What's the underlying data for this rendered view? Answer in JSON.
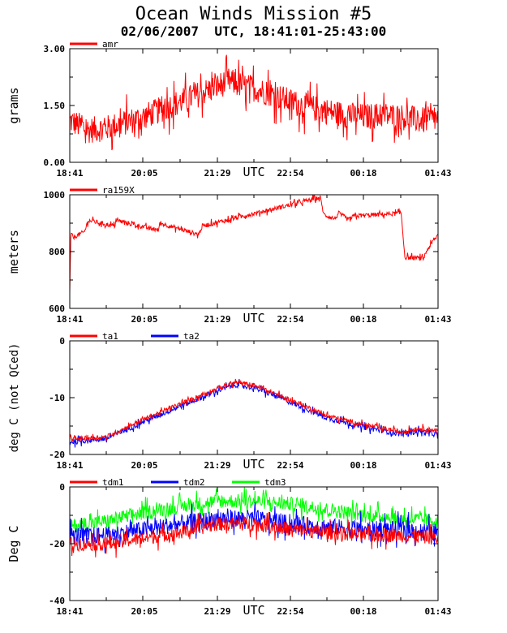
{
  "header": {
    "title": "Ocean Winds Mission #5",
    "subtitle": "02/06/2007  UTC, 18:41:01-25:43:00"
  },
  "chart_data": [
    {
      "type": "line",
      "ylabel": "grams",
      "xlabel": "UTC",
      "ylim": [
        0,
        3
      ],
      "yticks": [
        "0.00",
        "1.50",
        "3.00"
      ],
      "yticks_values": [
        0,
        1.5,
        3
      ],
      "xticks": [
        "18:41",
        "20:05",
        "21:29",
        "22:54",
        "00:18",
        "01:43"
      ],
      "legend": [
        {
          "name": "amr",
          "color": "#ff0000"
        }
      ],
      "series": [
        {
          "name": "amr",
          "color": "#ff0000",
          "noise": 0.35,
          "x": [
            0,
            0.05,
            0.1,
            0.2,
            0.3,
            0.4,
            0.43,
            0.46,
            0.5,
            0.55,
            0.6,
            0.65,
            0.7,
            0.75,
            0.8,
            0.85,
            0.9,
            0.95,
            1.0
          ],
          "y": [
            1.1,
            0.85,
            0.9,
            1.2,
            1.6,
            2.0,
            2.15,
            2.05,
            1.95,
            1.8,
            1.6,
            1.45,
            1.35,
            1.25,
            1.2,
            1.25,
            1.2,
            1.1,
            1.15
          ]
        }
      ]
    },
    {
      "type": "line",
      "ylabel": "meters",
      "xlabel": "UTC",
      "ylim": [
        600,
        1000
      ],
      "yticks": [
        "600",
        "800",
        "1000"
      ],
      "yticks_values": [
        600,
        800,
        1000
      ],
      "xticks": [
        "18:41",
        "20:05",
        "21:29",
        "22:54",
        "00:18",
        "01:43"
      ],
      "legend": [
        {
          "name": "ra159X",
          "color": "#ff0000"
        }
      ],
      "series": [
        {
          "name": "ra159X",
          "color": "#ff0000",
          "noise": 8,
          "x": [
            0,
            0.003,
            0.01,
            0.04,
            0.05,
            0.12,
            0.125,
            0.24,
            0.245,
            0.35,
            0.36,
            0.68,
            0.69,
            0.72,
            0.73,
            0.76,
            0.77,
            0.9,
            0.91,
            0.96,
            0.97,
            1.0
          ],
          "y": [
            650,
            860,
            850,
            870,
            910,
            890,
            910,
            875,
            900,
            860,
            890,
            990,
            930,
            915,
            935,
            910,
            925,
            935,
            780,
            775,
            805,
            860
          ]
        }
      ]
    },
    {
      "type": "line",
      "ylabel": "deg C (not QCed)",
      "xlabel": "UTC",
      "ylim": [
        -20,
        0
      ],
      "yticks": [
        "-20",
        "-10",
        "0"
      ],
      "yticks_values": [
        -20,
        -10,
        0
      ],
      "xticks": [
        "18:41",
        "20:05",
        "21:29",
        "22:54",
        "00:18",
        "01:43"
      ],
      "legend": [
        {
          "name": "ta1",
          "color": "#ff0000"
        },
        {
          "name": "ta2",
          "color": "#0000ff"
        }
      ],
      "series": [
        {
          "name": "ta2",
          "color": "#0000ff",
          "noise": 0.5,
          "x": [
            0,
            0.1,
            0.2,
            0.3,
            0.4,
            0.45,
            0.5,
            0.6,
            0.7,
            0.8,
            0.9,
            0.95,
            1.0
          ],
          "y": [
            -17.8,
            -17.2,
            -14.2,
            -11.5,
            -8.8,
            -7.7,
            -8.2,
            -10.8,
            -13.6,
            -15.2,
            -16.4,
            -15.9,
            -16.5
          ]
        },
        {
          "name": "ta1",
          "color": "#ff0000",
          "noise": 0.4,
          "x": [
            0,
            0.1,
            0.2,
            0.3,
            0.4,
            0.45,
            0.5,
            0.6,
            0.7,
            0.8,
            0.9,
            0.95,
            1.0
          ],
          "y": [
            -17.3,
            -16.9,
            -13.8,
            -11.1,
            -8.4,
            -7.3,
            -7.8,
            -10.4,
            -13.2,
            -14.8,
            -16.0,
            -15.4,
            -15.8
          ]
        }
      ]
    },
    {
      "type": "line",
      "ylabel": "Deg C",
      "xlabel": "UTC",
      "ylim": [
        -40,
        0
      ],
      "yticks": [
        "-40",
        "-20",
        "0"
      ],
      "yticks_values": [
        -40,
        -20,
        0
      ],
      "xticks": [
        "18:41",
        "20:05",
        "21:29",
        "22:54",
        "00:18",
        "01:43"
      ],
      "legend": [
        {
          "name": "tdm1",
          "color": "#ff0000"
        },
        {
          "name": "tdm2",
          "color": "#0000ff"
        },
        {
          "name": "tdm3",
          "color": "#00ff00"
        }
      ],
      "series": [
        {
          "name": "tdm3",
          "color": "#00ff00",
          "noise": 2.5,
          "x": [
            0,
            0.1,
            0.2,
            0.3,
            0.4,
            0.5,
            0.6,
            0.7,
            0.8,
            0.9,
            1.0
          ],
          "y": [
            -14,
            -12,
            -9,
            -7,
            -5,
            -5,
            -6,
            -8,
            -10,
            -11,
            -12
          ]
        },
        {
          "name": "tdm2",
          "color": "#0000ff",
          "noise": 3,
          "x": [
            0,
            0.1,
            0.2,
            0.3,
            0.4,
            0.5,
            0.6,
            0.7,
            0.8,
            0.9,
            1.0
          ],
          "y": [
            -17,
            -17,
            -15,
            -13,
            -11,
            -11,
            -13,
            -14,
            -15,
            -15,
            -16
          ]
        },
        {
          "name": "tdm1",
          "color": "#ff0000",
          "noise": 2.5,
          "x": [
            0,
            0.1,
            0.2,
            0.3,
            0.4,
            0.5,
            0.6,
            0.7,
            0.8,
            0.9,
            1.0
          ],
          "y": [
            -20,
            -20,
            -18,
            -16,
            -13,
            -13,
            -15,
            -16,
            -17,
            -17,
            -18
          ]
        }
      ]
    }
  ]
}
